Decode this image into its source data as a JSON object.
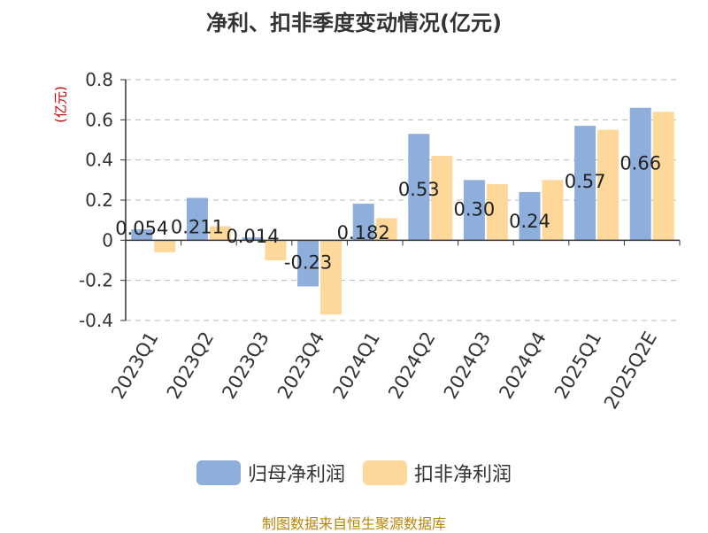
{
  "chart_data": {
    "type": "bar",
    "title": "净利、扣非季度变动情况(亿元)",
    "ylabel": "(亿元)",
    "xlabel": "",
    "categories": [
      "2023Q1",
      "2023Q2",
      "2023Q3",
      "2023Q4",
      "2024Q1",
      "2024Q2",
      "2024Q3",
      "2024Q4",
      "2025Q1",
      "2025Q2E"
    ],
    "series": [
      {
        "name": "归母净利润",
        "values": [
          0.054,
          0.211,
          0.014,
          -0.23,
          0.182,
          0.53,
          0.3,
          0.24,
          0.57,
          0.66
        ],
        "labels": [
          "0.054",
          "0.211",
          "0.014",
          "-0.23",
          "0.182",
          "0.53",
          "0.30",
          "0.24",
          "0.57",
          "0.66"
        ]
      },
      {
        "name": "扣非净利润",
        "values": [
          -0.06,
          0.07,
          -0.1,
          -0.37,
          0.11,
          0.42,
          0.28,
          0.3,
          0.55,
          0.64
        ]
      }
    ],
    "ylim": [
      -0.4,
      0.8
    ],
    "yticks": [
      "-0.4",
      "-0.2",
      "0",
      "0.2",
      "0.4",
      "0.6",
      "0.8"
    ],
    "grid": true,
    "legend": "bottom"
  },
  "colors": {
    "series1": "#8eaedb",
    "series2": "#fdd89a",
    "ylabel": "#cc0000",
    "source": "#b8860b"
  },
  "source": "制图数据来自恒生聚源数据库"
}
